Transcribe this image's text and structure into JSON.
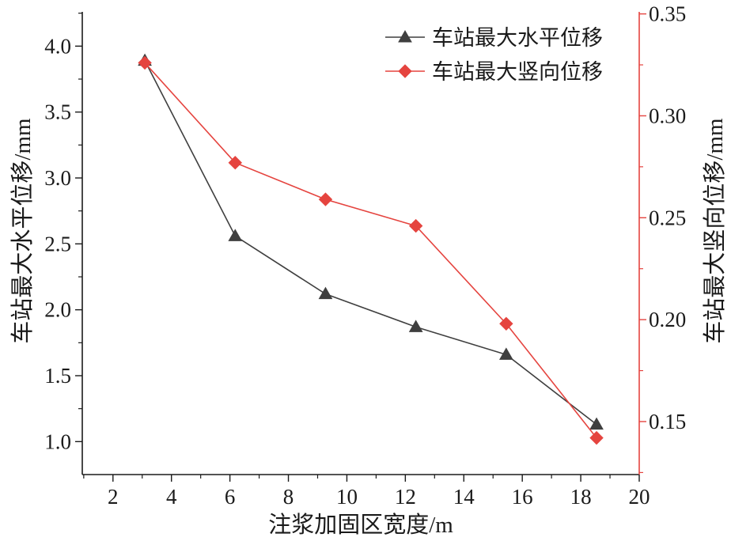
{
  "chart_data": {
    "type": "line",
    "xlabel": "注浆加固区宽度/m",
    "ylabel": "车站最大水平位移/mm",
    "y2label": "车站最大竖向位移/mm",
    "xlim": [
      0.95,
      20
    ],
    "ylim": [
      0.75,
      4.26
    ],
    "y2lim": [
      0.124,
      0.351
    ],
    "xticks": [
      "2",
      "4",
      "6",
      "8",
      "10",
      "12",
      "14",
      "16",
      "18",
      "20"
    ],
    "yticks": [
      "1.0",
      "1.5",
      "2.0",
      "2.5",
      "3.0",
      "3.5",
      "4.0"
    ],
    "y2ticks": [
      "0.15",
      "0.20",
      "0.25",
      "0.30",
      "0.35"
    ],
    "x": [
      3.09,
      6.18,
      9.27,
      12.36,
      15.45,
      18.54
    ],
    "series": [
      {
        "name": "车站最大水平位移",
        "axis": "left",
        "marker": "triangle",
        "color": "#3f3f3f",
        "values": [
          3.89,
          2.56,
          2.12,
          1.87,
          1.66,
          1.13
        ]
      },
      {
        "name": "车站最大竖向位移",
        "axis": "right",
        "marker": "diamond",
        "color": "#e5443f",
        "values": [
          0.326,
          0.277,
          0.259,
          0.246,
          0.198,
          0.142
        ]
      }
    ],
    "right_axis_color": "#e5443f",
    "legend": "top-right",
    "grid": false
  }
}
